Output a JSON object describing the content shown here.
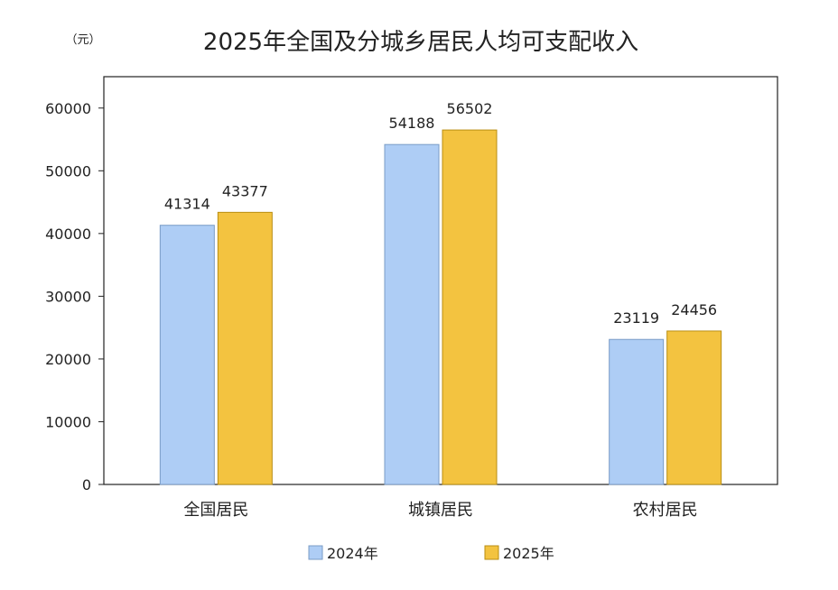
{
  "chart_data": {
    "type": "bar",
    "title": "2025年全国及分城乡居民人均可支配收入",
    "unit": "（元）",
    "categories": [
      "全国居民",
      "城镇居民",
      "农村居民"
    ],
    "series": [
      {
        "name": "2024年",
        "values": [
          41314,
          54188,
          23119
        ],
        "color": "#aecdf5",
        "stroke": "#7a9cc6"
      },
      {
        "name": "2025年",
        "values": [
          43377,
          56502,
          24456
        ],
        "color": "#f3c340",
        "stroke": "#b98e12"
      }
    ],
    "ylim": [
      0,
      65000
    ],
    "yticks": [
      "0",
      "10000",
      "20000",
      "30000",
      "40000",
      "50000",
      "60000"
    ],
    "legend_position": "bottom",
    "grid": false
  }
}
